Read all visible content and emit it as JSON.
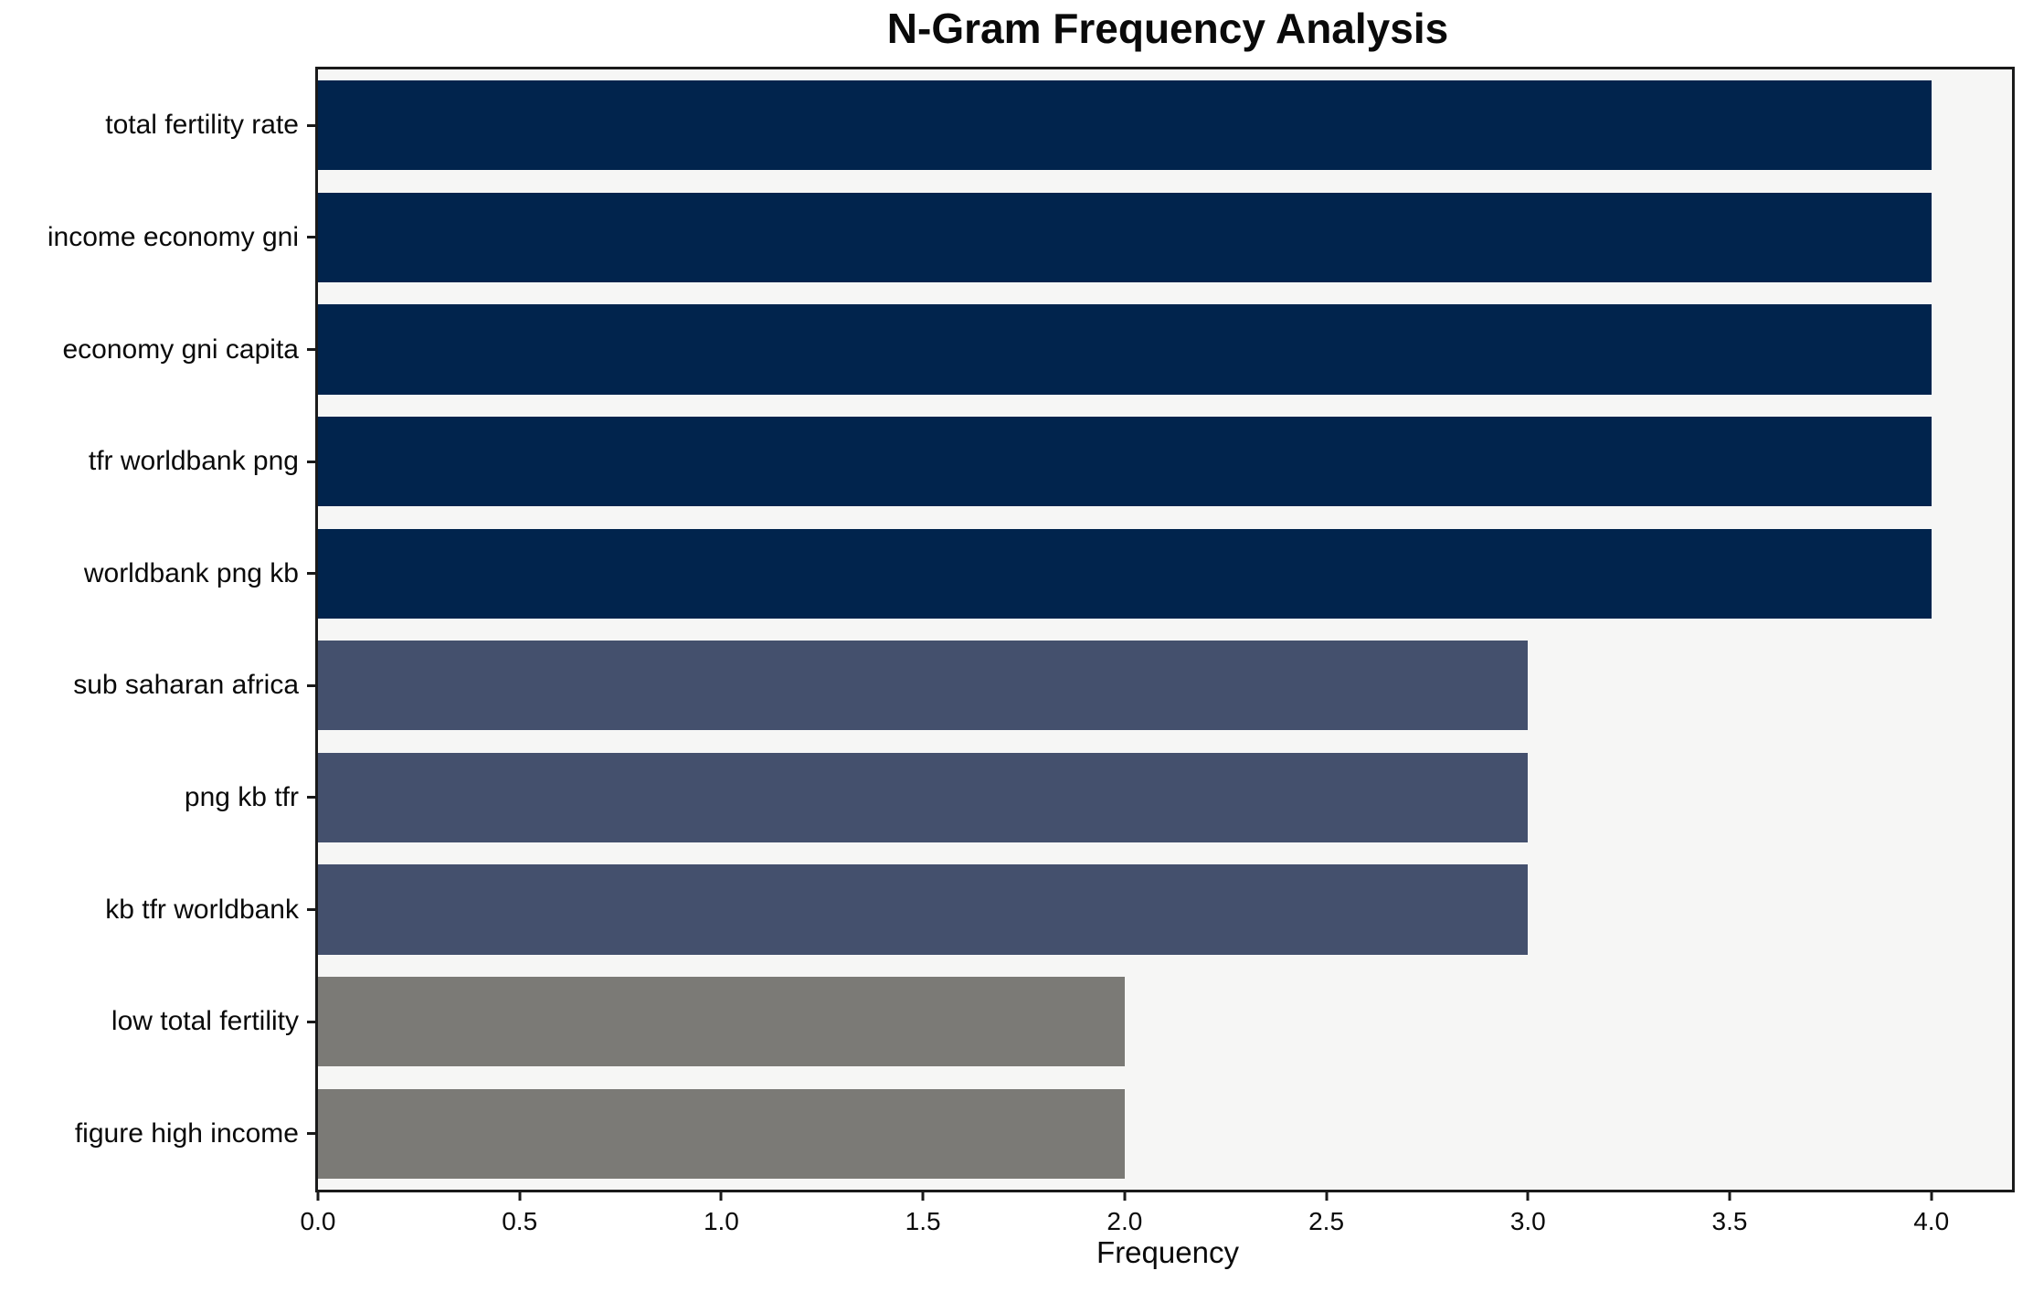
{
  "chart_data": {
    "type": "bar",
    "orientation": "horizontal",
    "title": "N-Gram Frequency Analysis",
    "xlabel": "Frequency",
    "ylabel": "",
    "categories": [
      "total fertility rate",
      "income economy gni",
      "economy gni capita",
      "tfr worldbank png",
      "worldbank png kb",
      "sub saharan africa",
      "png kb tfr",
      "kb tfr worldbank",
      "low total fertility",
      "figure high income"
    ],
    "values": [
      4,
      4,
      4,
      4,
      4,
      3,
      3,
      3,
      2,
      2
    ],
    "bar_colors": [
      "#01244D",
      "#01244D",
      "#01244D",
      "#01244D",
      "#01244D",
      "#44506D",
      "#44506D",
      "#44506D",
      "#7B7A76",
      "#7B7A76"
    ],
    "xlim": [
      0,
      4.2
    ],
    "xticks": [
      0.0,
      0.5,
      1.0,
      1.5,
      2.0,
      2.5,
      3.0,
      3.5,
      4.0
    ],
    "xtick_labels": [
      "0.0",
      "0.5",
      "1.0",
      "1.5",
      "2.0",
      "2.5",
      "3.0",
      "3.5",
      "4.0"
    ],
    "grid": false,
    "legend": false,
    "plot_background": "#F6F6F5",
    "figure_background": "#FFFFFF",
    "spine_color": "#1A1A1A"
  }
}
